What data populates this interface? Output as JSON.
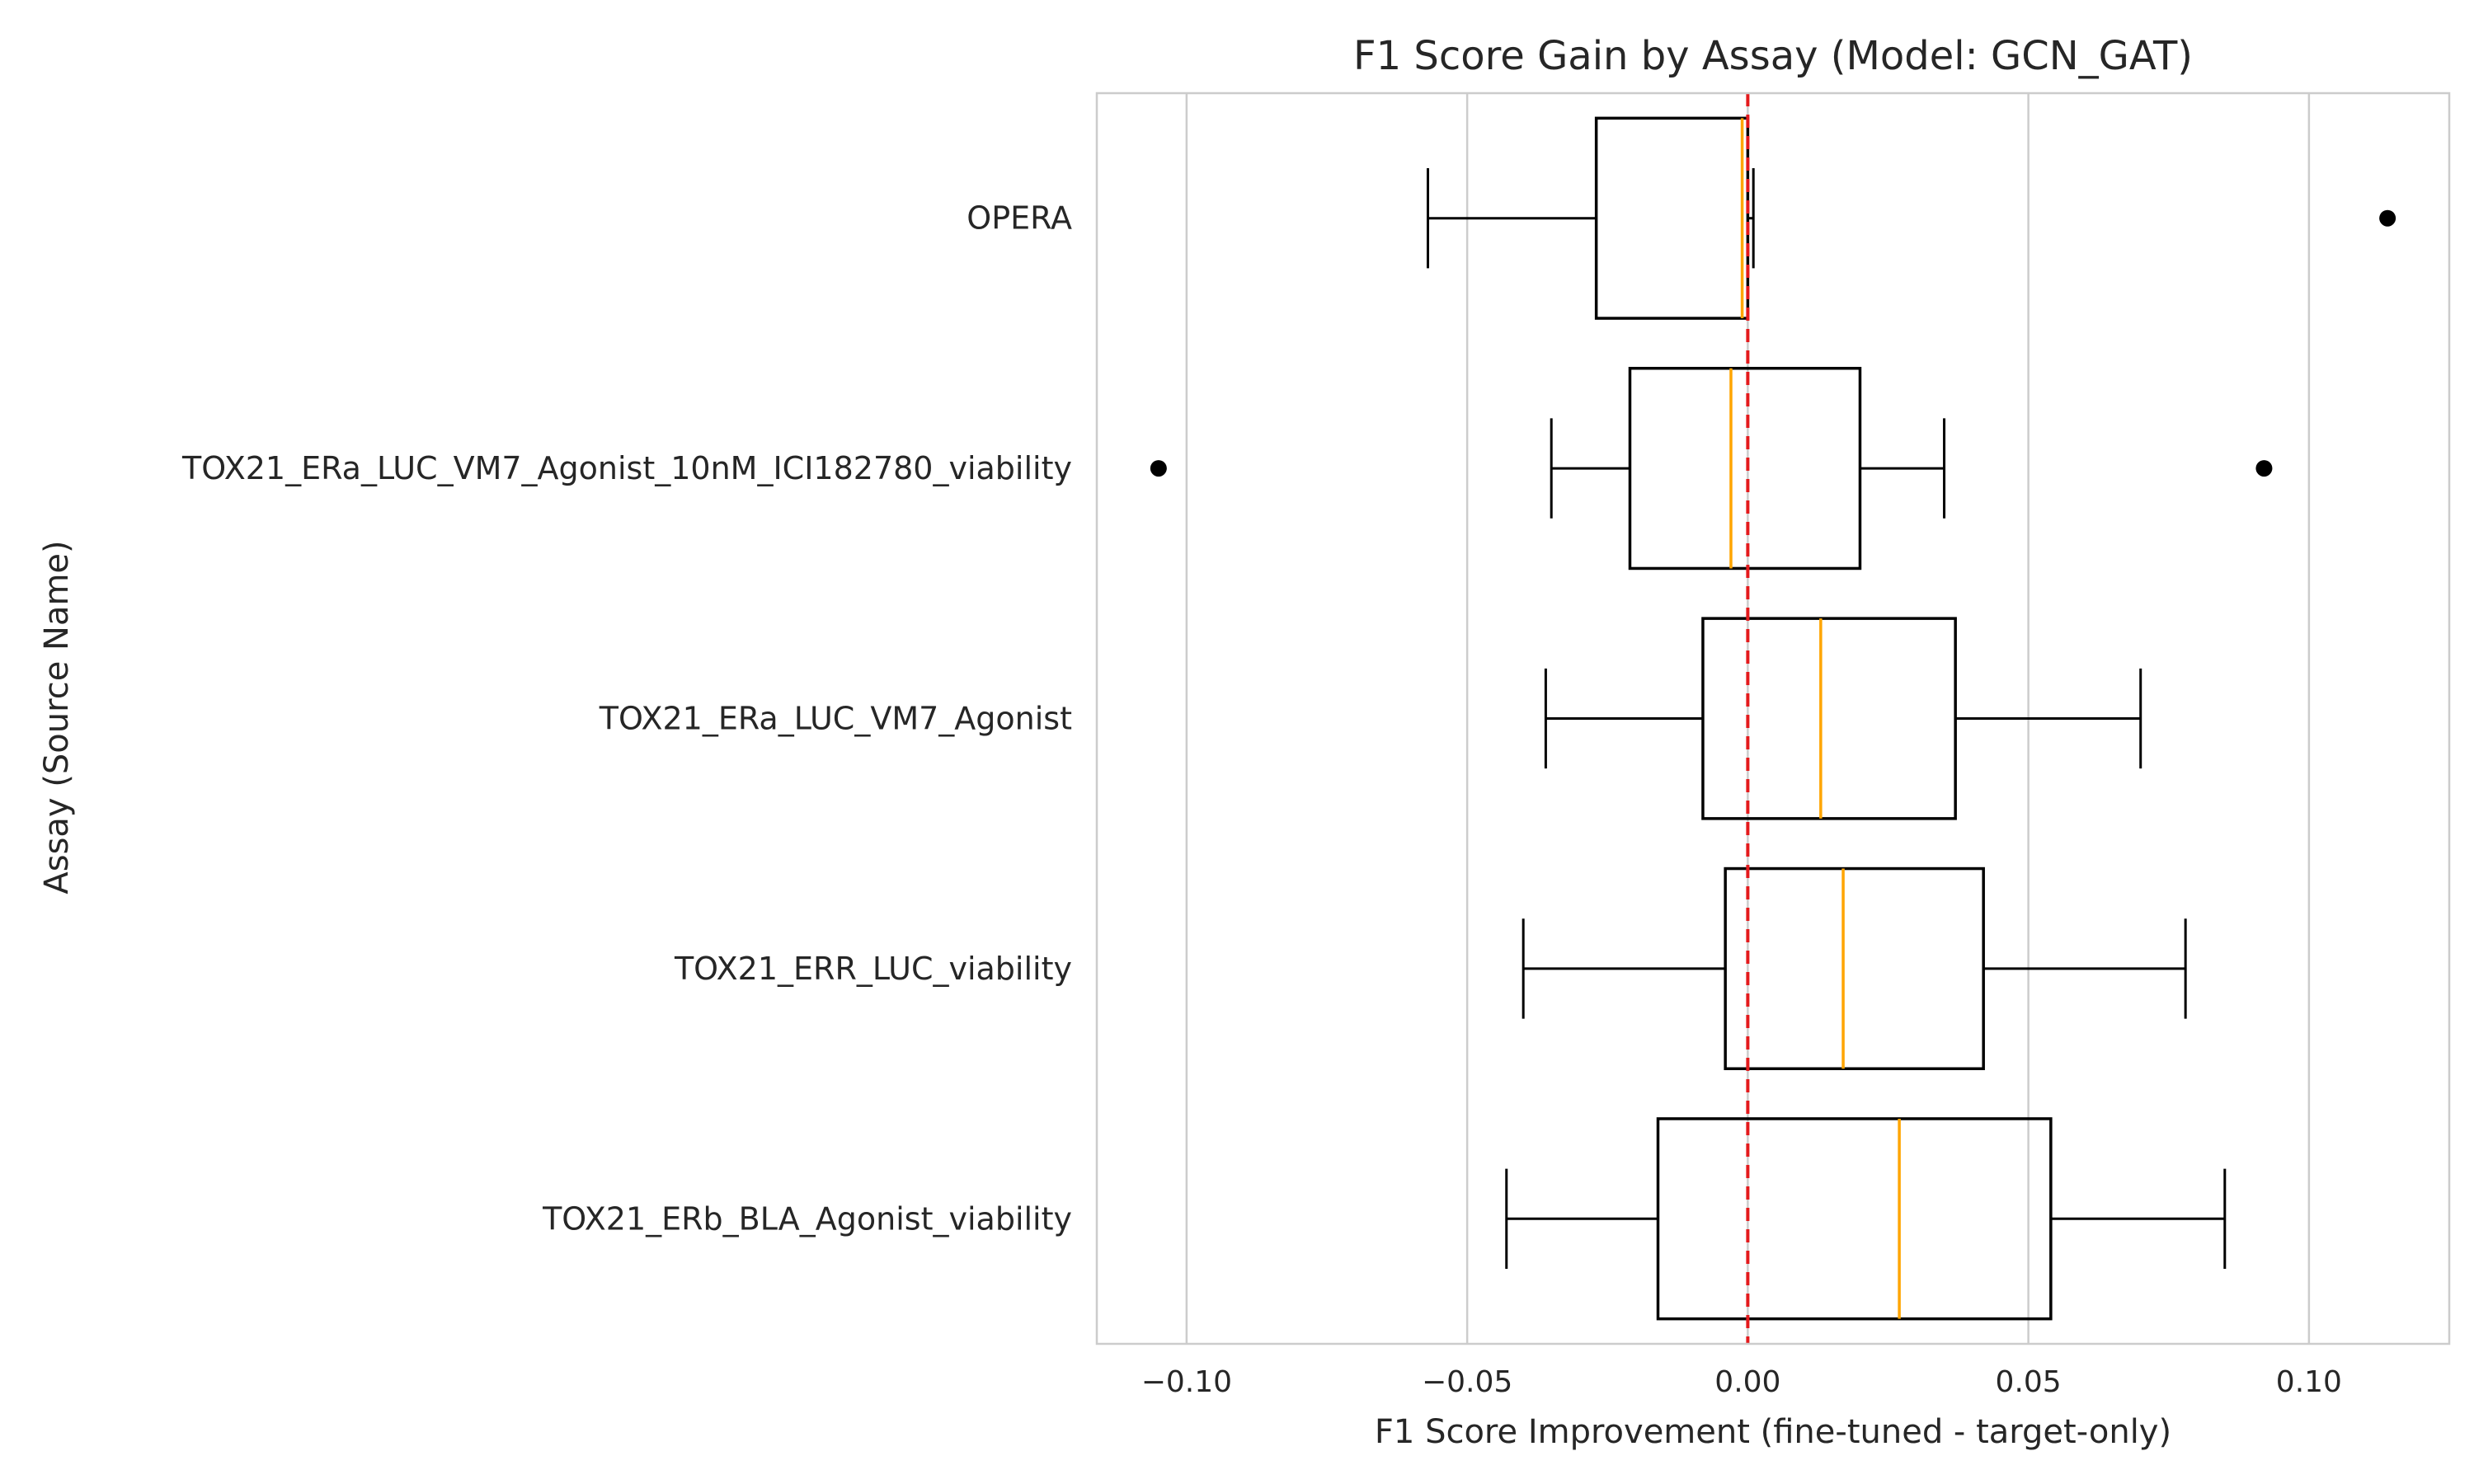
{
  "chart_data": {
    "type": "boxplot",
    "orientation": "horizontal",
    "title": "F1 Score Gain by Assay (Model: GCN_GAT)",
    "xlabel": "F1 Score Improvement (fine-tuned - target-only)",
    "ylabel": "Assay (Source Name)",
    "xlim": [
      -0.116,
      0.125
    ],
    "xticks": [
      -0.1,
      -0.05,
      0.0,
      0.05,
      0.1
    ],
    "xtick_labels": [
      "−0.10",
      "−0.05",
      "0.00",
      "0.05",
      "0.10"
    ],
    "grid": "vertical",
    "reference_line": {
      "x": 0.0,
      "color": "#e41a1c",
      "style": "dashed"
    },
    "colors": {
      "box": "#000000",
      "median": "#ffa500",
      "grid": "#cccccc",
      "reference": "#e41a1c"
    },
    "categories": [
      "OPERA",
      "TOX21_ERa_LUC_VM7_Agonist_10nM_ICI182780_viability",
      "TOX21_ERa_LUC_VM7_Agonist",
      "TOX21_ERR_LUC_viability",
      "TOX21_ERb_BLA_Agonist_viability"
    ],
    "boxes": [
      {
        "whislo": -0.057,
        "q1": -0.027,
        "med": -0.001,
        "q3": 0.0,
        "whishi": 0.001,
        "fliers": [
          0.114
        ]
      },
      {
        "whislo": -0.035,
        "q1": -0.021,
        "med": -0.003,
        "q3": 0.02,
        "whishi": 0.035,
        "fliers": [
          -0.105,
          0.092
        ]
      },
      {
        "whislo": -0.036,
        "q1": -0.008,
        "med": 0.013,
        "q3": 0.037,
        "whishi": 0.07,
        "fliers": []
      },
      {
        "whislo": -0.04,
        "q1": -0.004,
        "med": 0.017,
        "q3": 0.042,
        "whishi": 0.078,
        "fliers": []
      },
      {
        "whislo": -0.043,
        "q1": -0.016,
        "med": 0.027,
        "q3": 0.054,
        "whishi": 0.085,
        "fliers": []
      }
    ]
  }
}
